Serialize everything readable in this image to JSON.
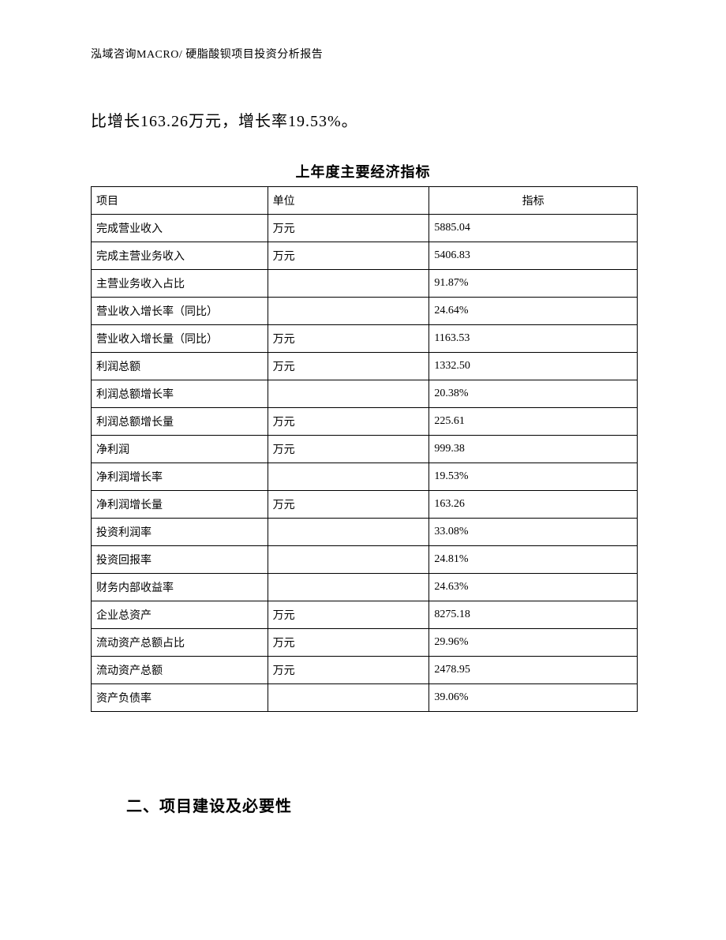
{
  "header": {
    "text": "泓域咨询MACRO/   硬脂酸钡项目投资分析报告"
  },
  "body_text": "比增长163.26万元，增长率19.53%。",
  "table": {
    "title": "上年度主要经济指标",
    "columns": [
      "项目",
      "单位",
      "指标"
    ],
    "rows": [
      [
        "完成营业收入",
        "万元",
        "5885.04"
      ],
      [
        "完成主营业务收入",
        "万元",
        "5406.83"
      ],
      [
        "主营业务收入占比",
        "",
        "91.87%"
      ],
      [
        "营业收入增长率（同比）",
        "",
        "24.64%"
      ],
      [
        "营业收入增长量（同比）",
        "万元",
        "1163.53"
      ],
      [
        "利润总额",
        "万元",
        "1332.50"
      ],
      [
        "利润总额增长率",
        "",
        "20.38%"
      ],
      [
        "利润总额增长量",
        "万元",
        "225.61"
      ],
      [
        "净利润",
        "万元",
        "999.38"
      ],
      [
        "净利润增长率",
        "",
        "19.53%"
      ],
      [
        "净利润增长量",
        "万元",
        "163.26"
      ],
      [
        "投资利润率",
        "",
        "33.08%"
      ],
      [
        "投资回报率",
        "",
        "24.81%"
      ],
      [
        "财务内部收益率",
        "",
        "24.63%"
      ],
      [
        "企业总资产",
        "万元",
        "8275.18"
      ],
      [
        "流动资产总额占比",
        "万元",
        "29.96%"
      ],
      [
        "流动资产总额",
        "万元",
        "2478.95"
      ],
      [
        "资产负债率",
        "",
        "39.06%"
      ]
    ]
  },
  "section_heading": "二、项目建设及必要性"
}
